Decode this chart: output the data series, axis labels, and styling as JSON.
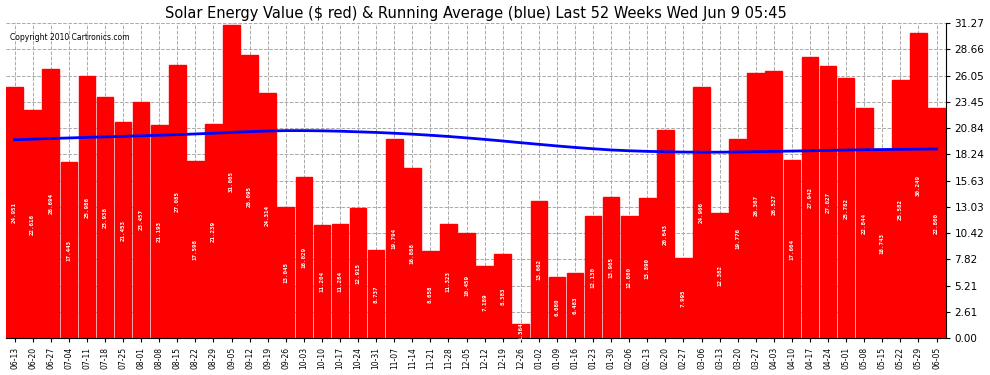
{
  "title": "Solar Energy Value ($ red) & Running Average (blue) Last 52 Weeks Wed Jun 9 05:45",
  "copyright": "Copyright 2010 Cartronics.com",
  "bar_color": "#ff0000",
  "avg_color": "#0000ff",
  "background_color": "#ffffff",
  "plot_bg_color": "#ffffff",
  "grid_color": "#aaaaaa",
  "ylim": [
    0,
    31.27
  ],
  "yticks": [
    0.0,
    2.61,
    5.21,
    7.82,
    10.42,
    13.03,
    15.63,
    18.24,
    20.84,
    23.45,
    26.05,
    28.66,
    31.27
  ],
  "bar_values": [
    24.951,
    22.616,
    26.694,
    17.443,
    25.986,
    23.938,
    21.453,
    23.457,
    21.193,
    27.085,
    17.598,
    21.239,
    31.065,
    28.095,
    24.314,
    13.045,
    16.029,
    11.204,
    11.284,
    12.915,
    8.737,
    19.794,
    16.868,
    8.658,
    11.323,
    10.459,
    7.189,
    8.383,
    1.364,
    13.662,
    6.08,
    6.483,
    12.13,
    13.965,
    12.08,
    13.89,
    20.643,
    7.995,
    24.906,
    12.382,
    19.776,
    26.367,
    26.527,
    17.664,
    27.942,
    27.027,
    25.782,
    22.844,
    18.743,
    25.582,
    30.249,
    22.8
  ],
  "x_labels": [
    "06-13",
    "06-20",
    "06-27",
    "07-04",
    "07-11",
    "07-18",
    "07-25",
    "08-01",
    "08-08",
    "08-15",
    "08-22",
    "08-29",
    "09-05",
    "09-12",
    "09-19",
    "09-26",
    "10-03",
    "10-10",
    "10-17",
    "10-24",
    "10-31",
    "11-07",
    "11-14",
    "11-21",
    "11-28",
    "12-05",
    "12-12",
    "12-19",
    "12-26",
    "01-02",
    "01-09",
    "01-16",
    "01-23",
    "01-30",
    "02-06",
    "02-13",
    "02-20",
    "02-27",
    "03-06",
    "03-13",
    "03-20",
    "03-27",
    "04-03",
    "04-10",
    "04-17",
    "04-24",
    "05-01",
    "05-08",
    "05-15",
    "05-22",
    "05-29",
    "06-05"
  ],
  "avg_values": [
    19.7,
    19.75,
    19.82,
    19.87,
    19.93,
    19.98,
    20.03,
    20.09,
    20.14,
    20.2,
    20.27,
    20.34,
    20.43,
    20.5,
    20.56,
    20.6,
    20.6,
    20.58,
    20.54,
    20.48,
    20.42,
    20.34,
    20.25,
    20.14,
    20.02,
    19.88,
    19.73,
    19.57,
    19.4,
    19.24,
    19.08,
    18.93,
    18.8,
    18.68,
    18.6,
    18.54,
    18.5,
    18.47,
    18.46,
    18.46,
    18.48,
    18.51,
    18.54,
    18.57,
    18.6,
    18.64,
    18.67,
    18.7,
    18.72,
    18.74,
    18.76,
    18.78
  ]
}
